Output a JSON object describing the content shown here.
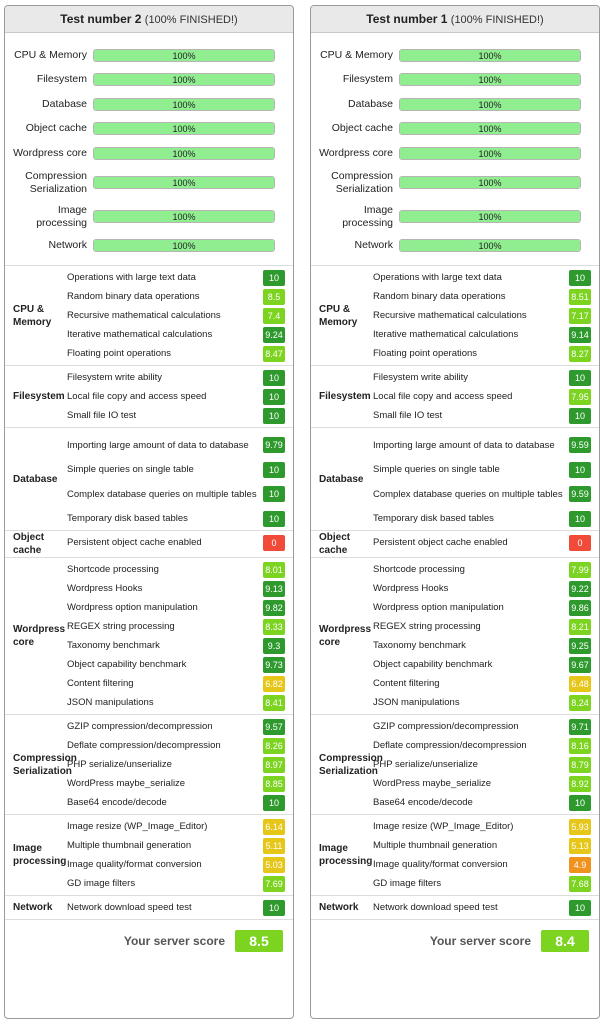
{
  "colors": {
    "dark_green": "#2e9a2e",
    "light_green": "#7cd320",
    "yellow": "#e6c619",
    "orange": "#f0931e",
    "red": "#f14a38",
    "progress_fill": "#90ee90"
  },
  "tests": [
    {
      "title": "Test number 2",
      "status": "(100% FINISHED!)",
      "progress": [
        {
          "label": "CPU & Memory",
          "value": "100%",
          "fraction": 1.0
        },
        {
          "label": "Filesystem",
          "value": "100%",
          "fraction": 1.0
        },
        {
          "label": "Database",
          "value": "100%",
          "fraction": 1.0
        },
        {
          "label": "Object cache",
          "value": "100%",
          "fraction": 1.0
        },
        {
          "label": "Wordpress core",
          "value": "100%",
          "fraction": 1.0
        },
        {
          "label": "Compression Serialization",
          "value": "100%",
          "fraction": 1.0
        },
        {
          "label": "Image processing",
          "value": "100%",
          "fraction": 1.0
        },
        {
          "label": "Network",
          "value": "100%",
          "fraction": 1.0
        }
      ],
      "sections": [
        {
          "name": "CPU & Memory",
          "items": [
            {
              "label": "Operations with large text data",
              "score": "10",
              "level": "dark_green"
            },
            {
              "label": "Random binary data operations",
              "score": "8.5",
              "level": "light_green"
            },
            {
              "label": "Recursive mathematical calculations",
              "score": "7.4",
              "level": "light_green"
            },
            {
              "label": "Iterative mathematical calculations",
              "score": "9.24",
              "level": "dark_green"
            },
            {
              "label": "Floating point operations",
              "score": "8.47",
              "level": "light_green"
            }
          ]
        },
        {
          "name": "Filesystem",
          "items": [
            {
              "label": "Filesystem write ability",
              "score": "10",
              "level": "dark_green"
            },
            {
              "label": "Local file copy and access speed",
              "score": "10",
              "level": "dark_green"
            },
            {
              "label": "Small file IO test",
              "score": "10",
              "level": "dark_green"
            }
          ]
        },
        {
          "name": "Database",
          "items": [
            {
              "label": "Importing large amount of data to database",
              "score": "9.79",
              "level": "dark_green"
            },
            {
              "label": "Simple queries on single table",
              "score": "10",
              "level": "dark_green"
            },
            {
              "label": "Complex database queries on multiple tables",
              "score": "10",
              "level": "dark_green"
            },
            {
              "label": "Temporary disk based tables",
              "score": "10",
              "level": "dark_green"
            }
          ]
        },
        {
          "name": "Object cache",
          "items": [
            {
              "label": "Persistent object cache enabled",
              "score": "0",
              "level": "red"
            }
          ]
        },
        {
          "name": "Wordpress core",
          "items": [
            {
              "label": "Shortcode processing",
              "score": "8.01",
              "level": "light_green"
            },
            {
              "label": "Wordpress Hooks",
              "score": "9.13",
              "level": "dark_green"
            },
            {
              "label": "Wordpress option manipulation",
              "score": "9.82",
              "level": "dark_green"
            },
            {
              "label": "REGEX string processing",
              "score": "8.33",
              "level": "light_green"
            },
            {
              "label": "Taxonomy benchmark",
              "score": "9.3",
              "level": "dark_green"
            },
            {
              "label": "Object capability benchmark",
              "score": "9.73",
              "level": "dark_green"
            },
            {
              "label": "Content filtering",
              "score": "6.82",
              "level": "yellow"
            },
            {
              "label": "JSON manipulations",
              "score": "8.41",
              "level": "light_green"
            }
          ]
        },
        {
          "name": "Compression Serialization",
          "items": [
            {
              "label": "GZIP compression/decompression",
              "score": "9.57",
              "level": "dark_green"
            },
            {
              "label": "Deflate compression/decompression",
              "score": "8.26",
              "level": "light_green"
            },
            {
              "label": "PHP serialize/unserialize",
              "score": "8.97",
              "level": "light_green"
            },
            {
              "label": "WordPress maybe_serialize",
              "score": "8.85",
              "level": "light_green"
            },
            {
              "label": "Base64 encode/decode",
              "score": "10",
              "level": "dark_green"
            }
          ]
        },
        {
          "name": "Image processing",
          "items": [
            {
              "label": "Image resize (WP_Image_Editor)",
              "score": "6.14",
              "level": "yellow"
            },
            {
              "label": "Multiple thumbnail generation",
              "score": "5.11",
              "level": "yellow"
            },
            {
              "label": "Image quality/format conversion",
              "score": "5.03",
              "level": "yellow"
            },
            {
              "label": "GD image filters",
              "score": "7.69",
              "level": "light_green"
            }
          ]
        },
        {
          "name": "Network",
          "items": [
            {
              "label": "Network download speed test",
              "score": "10",
              "level": "dark_green"
            }
          ]
        }
      ],
      "score_label": "Your server score",
      "score": "8.5"
    },
    {
      "title": "Test number 1",
      "status": "(100% FINISHED!)",
      "progress": [
        {
          "label": "CPU & Memory",
          "value": "100%",
          "fraction": 1.0
        },
        {
          "label": "Filesystem",
          "value": "100%",
          "fraction": 1.0
        },
        {
          "label": "Database",
          "value": "100%",
          "fraction": 1.0
        },
        {
          "label": "Object cache",
          "value": "100%",
          "fraction": 1.0
        },
        {
          "label": "Wordpress core",
          "value": "100%",
          "fraction": 1.0
        },
        {
          "label": "Compression Serialization",
          "value": "100%",
          "fraction": 1.0
        },
        {
          "label": "Image processing",
          "value": "100%",
          "fraction": 1.0
        },
        {
          "label": "Network",
          "value": "100%",
          "fraction": 1.0
        }
      ],
      "sections": [
        {
          "name": "CPU & Memory",
          "items": [
            {
              "label": "Operations with large text data",
              "score": "10",
              "level": "dark_green"
            },
            {
              "label": "Random binary data operations",
              "score": "8.51",
              "level": "light_green"
            },
            {
              "label": "Recursive mathematical calculations",
              "score": "7.17",
              "level": "light_green"
            },
            {
              "label": "Iterative mathematical calculations",
              "score": "9.14",
              "level": "dark_green"
            },
            {
              "label": "Floating point operations",
              "score": "8.27",
              "level": "light_green"
            }
          ]
        },
        {
          "name": "Filesystem",
          "items": [
            {
              "label": "Filesystem write ability",
              "score": "10",
              "level": "dark_green"
            },
            {
              "label": "Local file copy and access speed",
              "score": "7.95",
              "level": "light_green"
            },
            {
              "label": "Small file IO test",
              "score": "10",
              "level": "dark_green"
            }
          ]
        },
        {
          "name": "Database",
          "items": [
            {
              "label": "Importing large amount of data to database",
              "score": "9.59",
              "level": "dark_green"
            },
            {
              "label": "Simple queries on single table",
              "score": "10",
              "level": "dark_green"
            },
            {
              "label": "Complex database queries on multiple tables",
              "score": "9.59",
              "level": "dark_green"
            },
            {
              "label": "Temporary disk based tables",
              "score": "10",
              "level": "dark_green"
            }
          ]
        },
        {
          "name": "Object cache",
          "items": [
            {
              "label": "Persistent object cache enabled",
              "score": "0",
              "level": "red"
            }
          ]
        },
        {
          "name": "Wordpress core",
          "items": [
            {
              "label": "Shortcode processing",
              "score": "7.99",
              "level": "light_green"
            },
            {
              "label": "Wordpress Hooks",
              "score": "9.22",
              "level": "dark_green"
            },
            {
              "label": "Wordpress option manipulation",
              "score": "9.86",
              "level": "dark_green"
            },
            {
              "label": "REGEX string processing",
              "score": "8.21",
              "level": "light_green"
            },
            {
              "label": "Taxonomy benchmark",
              "score": "9.25",
              "level": "dark_green"
            },
            {
              "label": "Object capability benchmark",
              "score": "9.67",
              "level": "dark_green"
            },
            {
              "label": "Content filtering",
              "score": "6.48",
              "level": "yellow"
            },
            {
              "label": "JSON manipulations",
              "score": "8.24",
              "level": "light_green"
            }
          ]
        },
        {
          "name": "Compression Serialization",
          "items": [
            {
              "label": "GZIP compression/decompression",
              "score": "9.71",
              "level": "dark_green"
            },
            {
              "label": "Deflate compression/decompression",
              "score": "8.16",
              "level": "light_green"
            },
            {
              "label": "PHP serialize/unserialize",
              "score": "8.79",
              "level": "light_green"
            },
            {
              "label": "WordPress maybe_serialize",
              "score": "8.92",
              "level": "light_green"
            },
            {
              "label": "Base64 encode/decode",
              "score": "10",
              "level": "dark_green"
            }
          ]
        },
        {
          "name": "Image processing",
          "items": [
            {
              "label": "Image resize (WP_Image_Editor)",
              "score": "5.93",
              "level": "yellow"
            },
            {
              "label": "Multiple thumbnail generation",
              "score": "5.13",
              "level": "yellow"
            },
            {
              "label": "Image quality/format conversion",
              "score": "4.9",
              "level": "orange"
            },
            {
              "label": "GD image filters",
              "score": "7.68",
              "level": "light_green"
            }
          ]
        },
        {
          "name": "Network",
          "items": [
            {
              "label": "Network download speed test",
              "score": "10",
              "level": "dark_green"
            }
          ]
        }
      ],
      "score_label": "Your server score",
      "score": "8.4"
    }
  ]
}
